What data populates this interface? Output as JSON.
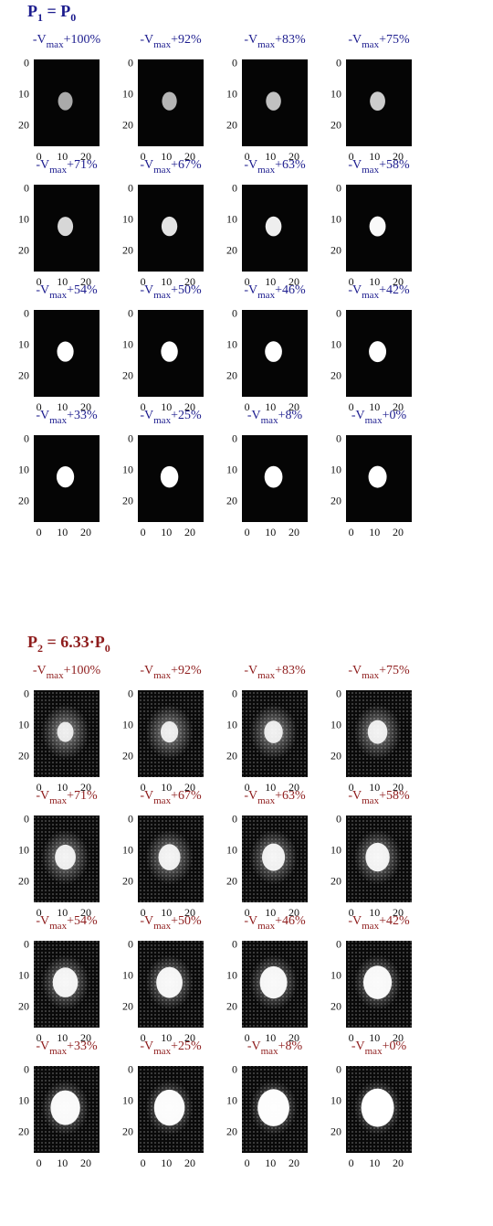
{
  "sections": [
    {
      "title": [
        "P",
        "1",
        " = P",
        "0"
      ],
      "ticks": [
        "0",
        "10",
        "20"
      ],
      "panels": [
        [
          "-V",
          "max",
          "+100%"
        ],
        [
          "-V",
          "max",
          "+92%"
        ],
        [
          "-V",
          "max",
          "+83%"
        ],
        [
          "-V",
          "max",
          "+75%"
        ],
        [
          "-V",
          "max",
          "+71%"
        ],
        [
          "-V",
          "max",
          "+67%"
        ],
        [
          "-V",
          "max",
          "+63%"
        ],
        [
          "-V",
          "max",
          "+58%"
        ],
        [
          "-V",
          "max",
          "+54%"
        ],
        [
          "-V",
          "max",
          "+50%"
        ],
        [
          "-V",
          "max",
          "+46%"
        ],
        [
          "-V",
          "max",
          "+42%"
        ],
        [
          "-V",
          "max",
          "+33%"
        ],
        [
          "-V",
          "max",
          "+25%"
        ],
        [
          "-V",
          "max",
          "+8%"
        ],
        [
          "-V",
          "max",
          "+0%"
        ]
      ]
    },
    {
      "title": [
        "P",
        "2",
        " = 6.33·P",
        "0"
      ],
      "ticks": [
        "0",
        "10",
        "20"
      ],
      "panels": [
        [
          "-V",
          "max",
          "+100%"
        ],
        [
          "-V",
          "max",
          "+92%"
        ],
        [
          "-V",
          "max",
          "+83%"
        ],
        [
          "-V",
          "max",
          "+75%"
        ],
        [
          "-V",
          "max",
          "+71%"
        ],
        [
          "-V",
          "max",
          "+67%"
        ],
        [
          "-V",
          "max",
          "+63%"
        ],
        [
          "-V",
          "max",
          "+58%"
        ],
        [
          "-V",
          "max",
          "+54%"
        ],
        [
          "-V",
          "max",
          "+50%"
        ],
        [
          "-V",
          "max",
          "+46%"
        ],
        [
          "-V",
          "max",
          "+42%"
        ],
        [
          "-V",
          "max",
          "+33%"
        ],
        [
          "-V",
          "max",
          "+25%"
        ],
        [
          "-V",
          "max",
          "+8%"
        ],
        [
          "-V",
          "max",
          "+0%"
        ]
      ]
    }
  ]
}
